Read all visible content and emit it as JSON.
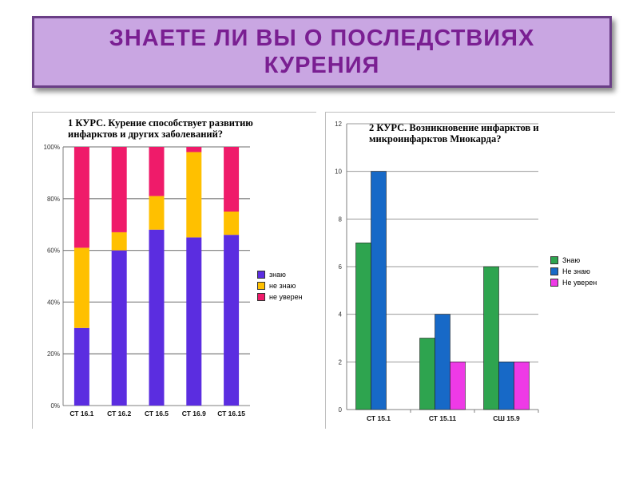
{
  "slide": {
    "title_line1": "ЗНАЕТЕ ЛИ ВЫ О ПОСЛЕДСТВИЯХ",
    "title_line2": "КУРЕНИЯ",
    "banner_color": "#c9a6e2",
    "title_color": "#7a1f92"
  },
  "chart_data": [
    {
      "type": "bar",
      "stacked": "percent",
      "title_line1": "1 КУРС. Курение способствует развитию",
      "title_line2": "инфарктов и других заболеваний?",
      "categories": [
        "СТ 16.1",
        "СТ 16.2",
        "СТ 16.5",
        "СТ 16.9",
        "СТ 16.15"
      ],
      "series": [
        {
          "name": "знаю",
          "color": "#5b2de0",
          "values": [
            30,
            60,
            68,
            65,
            66
          ]
        },
        {
          "name": "не знаю",
          "color": "#ffc000",
          "values": [
            31,
            7,
            13,
            33,
            9
          ]
        },
        {
          "name": "не уверен",
          "color": "#ef1b6a",
          "values": [
            39,
            33,
            19,
            2,
            25
          ]
        }
      ],
      "yticks": [
        "0%",
        "20%",
        "40%",
        "60%",
        "80%",
        "100%"
      ],
      "ylim": [
        0,
        100
      ],
      "grid": true,
      "legend": "right"
    },
    {
      "type": "bar",
      "title_line1": "2 КУРС. Возникновение инфарктов и",
      "title_line2": "микроинфарктов Миокарда?",
      "categories": [
        "СТ 15.1",
        "СТ 15.11",
        "СШ 15.9"
      ],
      "series": [
        {
          "name": "Знаю",
          "color": "#2ea44f",
          "values": [
            7,
            3,
            6
          ]
        },
        {
          "name": "Не знаю",
          "color": "#1769c7",
          "values": [
            10,
            4,
            2
          ]
        },
        {
          "name": "Не уверен",
          "color": "#ee3ae6",
          "values": [
            0,
            2,
            2
          ]
        }
      ],
      "yticks": [
        "0",
        "2",
        "4",
        "6",
        "8",
        "10",
        "12"
      ],
      "ylim": [
        0,
        12
      ],
      "grid": true,
      "legend": "right"
    }
  ]
}
